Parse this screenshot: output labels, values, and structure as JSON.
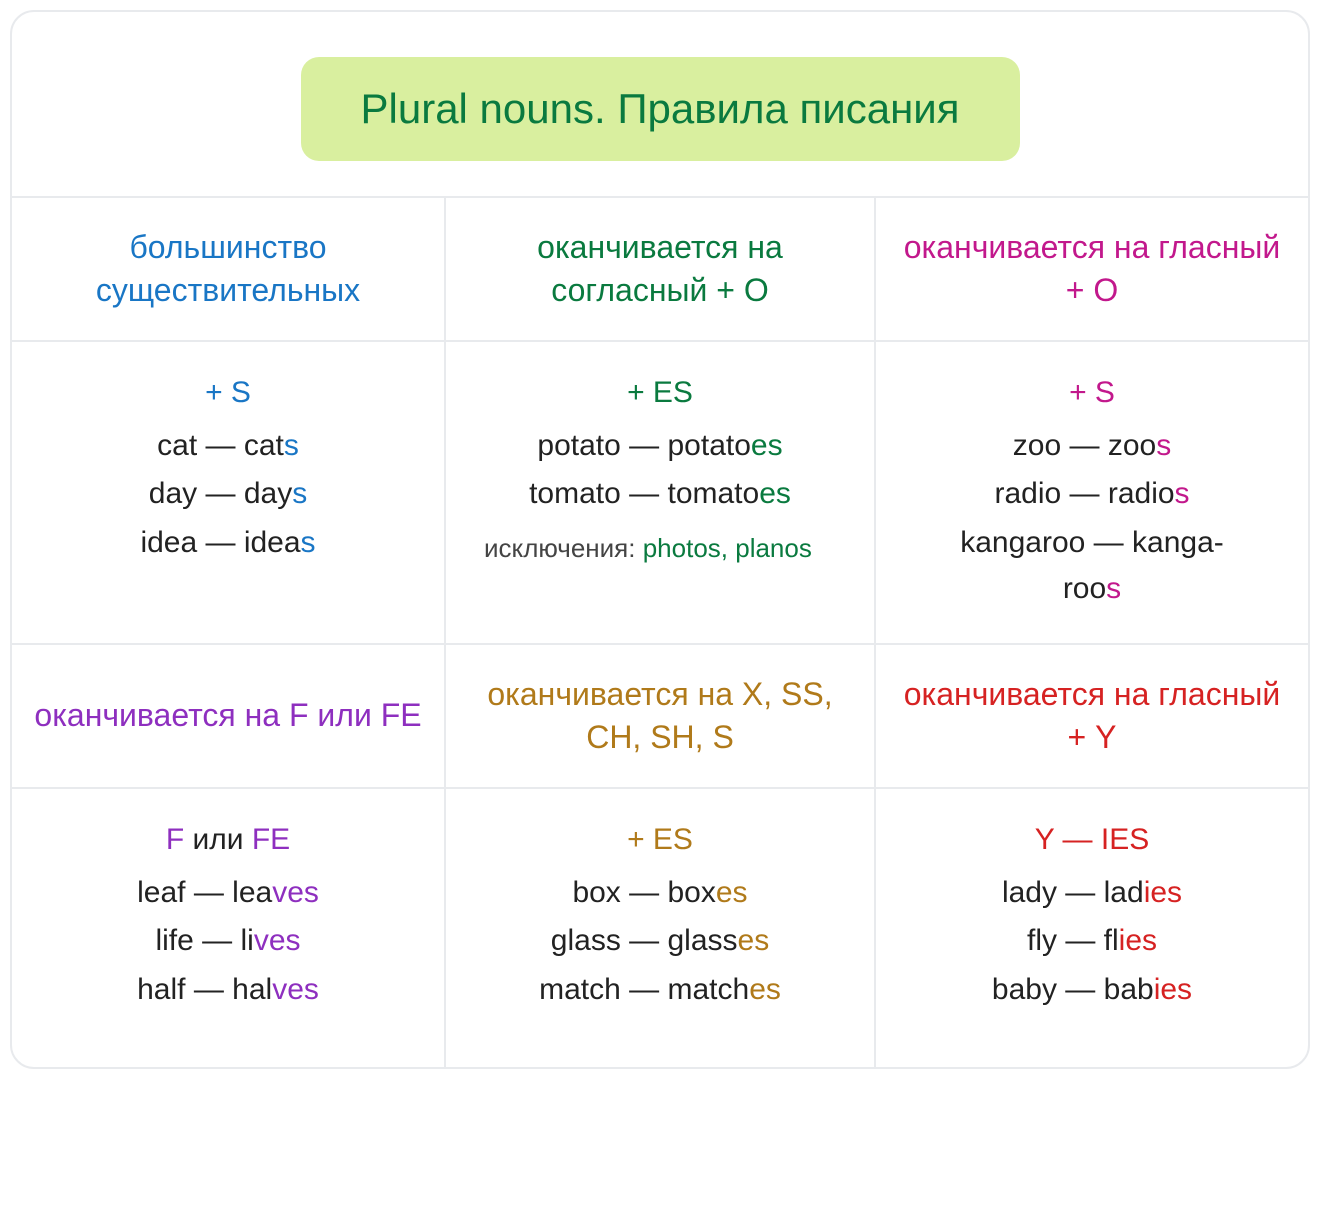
{
  "title": "Plural nouns. Правила писания",
  "title_bg": "#d9ef9f",
  "title_color": "#0a7a3f",
  "border_color": "#e8eaed",
  "columns": [
    {
      "header": "большинство существительных",
      "color": "#1976c5",
      "rule": "+ S",
      "examples": [
        {
          "base": "cat — cat",
          "suffix": "s"
        },
        {
          "base": "day — day",
          "suffix": "s"
        },
        {
          "base": "idea — idea",
          "suffix": "s"
        }
      ]
    },
    {
      "header": "оканчивается на согласный + O",
      "color": "#0a7a3f",
      "rule": "+ ES",
      "examples": [
        {
          "base": "potato — potato",
          "suffix": "es"
        },
        {
          "base": "tomato — tomato",
          "suffix": "es"
        }
      ],
      "note_label": "исключения: ",
      "note_value": "photos, planos"
    },
    {
      "header": "оканчивается на гласный + O",
      "color": "#c2188c",
      "rule": "+ S",
      "examples": [
        {
          "base": "zoo — zoo",
          "suffix": "s"
        },
        {
          "base": "radio — radio",
          "suffix": "s"
        },
        {
          "base": "kangaroo — kanga-\nroo",
          "suffix": "s"
        }
      ]
    },
    {
      "header": "оканчивается на F или FE",
      "color": "#8e2fbf",
      "rule_parts": [
        "F",
        " или ",
        "FE"
      ],
      "examples": [
        {
          "base": "leaf — lea",
          "suffix": "ves"
        },
        {
          "base": "life — li",
          "suffix": "ves"
        },
        {
          "base": "half — hal",
          "suffix": "ves"
        }
      ]
    },
    {
      "header": "оканчивается на X, SS, CH, SH, S",
      "color": "#b07a1a",
      "rule": "+ ES",
      "examples": [
        {
          "base": "box — box",
          "suffix": "es"
        },
        {
          "base": "glass — glass",
          "suffix": "es"
        },
        {
          "base": "match — match",
          "suffix": "es"
        }
      ]
    },
    {
      "header": "оканчивается на гласный + Y",
      "color": "#d62222",
      "rule": "Y — IES",
      "examples": [
        {
          "base": "lady — lad",
          "suffix": "ies"
        },
        {
          "base": "fly — fl",
          "suffix": "ies"
        },
        {
          "base": "baby — bab",
          "suffix": "ies"
        }
      ]
    }
  ]
}
